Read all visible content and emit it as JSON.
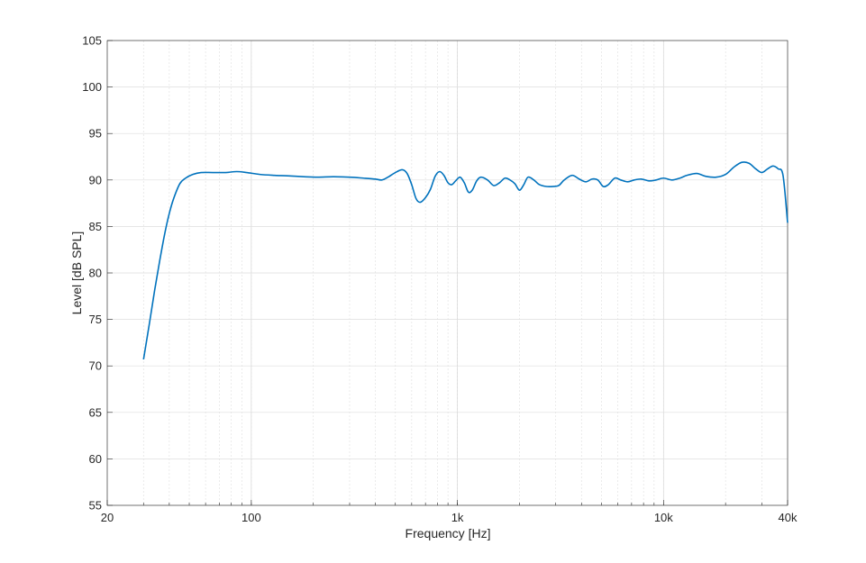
{
  "chart_data": {
    "type": "line",
    "title": "",
    "xlabel": "Frequency [Hz]",
    "ylabel": "Level [dB SPL]",
    "xscale": "log",
    "xlim": [
      20,
      40000
    ],
    "ylim": [
      55,
      105
    ],
    "grid": true,
    "x_ticks": [
      {
        "value": 20,
        "label": "20"
      },
      {
        "value": 100,
        "label": "100"
      },
      {
        "value": 1000,
        "label": "1k"
      },
      {
        "value": 10000,
        "label": "10k"
      },
      {
        "value": 40000,
        "label": "40k"
      }
    ],
    "y_ticks": [
      55,
      60,
      65,
      70,
      75,
      80,
      85,
      90,
      95,
      100,
      105
    ],
    "series": [
      {
        "color": "#0072BD",
        "points": [
          [
            30,
            70.7
          ],
          [
            32,
            74.5
          ],
          [
            34,
            78.2
          ],
          [
            36,
            81.4
          ],
          [
            38,
            84.2
          ],
          [
            40,
            86.4
          ],
          [
            42,
            88.0
          ],
          [
            45,
            89.6
          ],
          [
            48,
            90.2
          ],
          [
            52,
            90.6
          ],
          [
            57,
            90.8
          ],
          [
            65,
            90.8
          ],
          [
            75,
            90.8
          ],
          [
            85,
            90.9
          ],
          [
            95,
            90.8
          ],
          [
            110,
            90.6
          ],
          [
            130,
            90.5
          ],
          [
            150,
            90.45
          ],
          [
            180,
            90.35
          ],
          [
            210,
            90.3
          ],
          [
            250,
            90.35
          ],
          [
            300,
            90.3
          ],
          [
            350,
            90.2
          ],
          [
            400,
            90.1
          ],
          [
            430,
            90.0
          ],
          [
            460,
            90.3
          ],
          [
            500,
            90.8
          ],
          [
            540,
            91.1
          ],
          [
            570,
            90.7
          ],
          [
            600,
            89.5
          ],
          [
            630,
            88.0
          ],
          [
            660,
            87.6
          ],
          [
            700,
            88.1
          ],
          [
            740,
            89.0
          ],
          [
            780,
            90.4
          ],
          [
            820,
            90.9
          ],
          [
            860,
            90.5
          ],
          [
            900,
            89.7
          ],
          [
            940,
            89.5
          ],
          [
            980,
            89.9
          ],
          [
            1030,
            90.3
          ],
          [
            1080,
            89.7
          ],
          [
            1130,
            88.7
          ],
          [
            1180,
            88.9
          ],
          [
            1240,
            89.9
          ],
          [
            1300,
            90.3
          ],
          [
            1400,
            90.0
          ],
          [
            1500,
            89.4
          ],
          [
            1600,
            89.7
          ],
          [
            1700,
            90.2
          ],
          [
            1800,
            90.0
          ],
          [
            1900,
            89.6
          ],
          [
            2000,
            88.9
          ],
          [
            2100,
            89.5
          ],
          [
            2200,
            90.3
          ],
          [
            2350,
            90.0
          ],
          [
            2500,
            89.5
          ],
          [
            2700,
            89.3
          ],
          [
            2900,
            89.3
          ],
          [
            3100,
            89.4
          ],
          [
            3300,
            90.0
          ],
          [
            3600,
            90.5
          ],
          [
            3900,
            90.1
          ],
          [
            4200,
            89.8
          ],
          [
            4500,
            90.1
          ],
          [
            4800,
            90.0
          ],
          [
            5100,
            89.3
          ],
          [
            5400,
            89.5
          ],
          [
            5800,
            90.2
          ],
          [
            6200,
            90.0
          ],
          [
            6700,
            89.8
          ],
          [
            7200,
            90.0
          ],
          [
            7800,
            90.1
          ],
          [
            8500,
            89.9
          ],
          [
            9200,
            90.0
          ],
          [
            10000,
            90.2
          ],
          [
            11000,
            90.0
          ],
          [
            12000,
            90.2
          ],
          [
            13000,
            90.5
          ],
          [
            14500,
            90.7
          ],
          [
            16000,
            90.4
          ],
          [
            18000,
            90.3
          ],
          [
            20000,
            90.6
          ],
          [
            22000,
            91.4
          ],
          [
            24000,
            91.9
          ],
          [
            26000,
            91.8
          ],
          [
            28000,
            91.2
          ],
          [
            30000,
            90.8
          ],
          [
            32000,
            91.2
          ],
          [
            34000,
            91.5
          ],
          [
            36000,
            91.2
          ],
          [
            38000,
            90.5
          ],
          [
            40000,
            85.4
          ]
        ]
      }
    ]
  }
}
